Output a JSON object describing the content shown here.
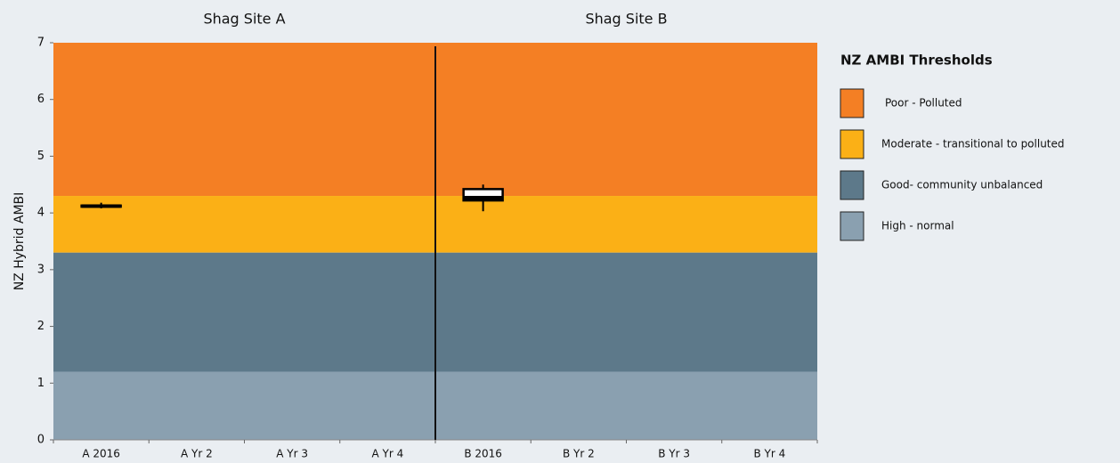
{
  "chart_data": {
    "type": "box",
    "groups": [
      "Shag Site A",
      "Shag Site B"
    ],
    "ylabel": "NZ Hybrid AMBI",
    "categories": [
      "A  2016",
      "A Yr 2",
      "A Yr 3",
      "A Yr 4",
      "B 2016",
      "B Yr 2",
      "B Yr 3",
      "B Yr 4"
    ],
    "boxes": [
      {
        "min": 4.08,
        "q1": 4.11,
        "median": 4.12,
        "q3": 4.13,
        "max": 4.18
      },
      null,
      null,
      null,
      {
        "min": 4.03,
        "q1": 4.22,
        "median": 4.27,
        "q3": 4.42,
        "max": 4.5
      },
      null,
      null,
      null
    ],
    "ylim": [
      0,
      7
    ],
    "yticks": [
      0,
      1,
      2,
      3,
      4,
      5,
      6,
      7
    ],
    "legend_title": "NZ AMBI Thresholds",
    "thresholds": [
      {
        "label": "Poor - Polluted",
        "color": "#f47f24",
        "from": 4.3,
        "to": 7
      },
      {
        "label": "Moderate - transitional to polluted",
        "color": "#fbb016",
        "from": 3.3,
        "to": 4.3
      },
      {
        "label": "Good- community unbalanced",
        "color": "#5d798a",
        "from": 1.2,
        "to": 3.3
      },
      {
        "label": "High - normal",
        "color": "#8aa0b0",
        "from": 0,
        "to": 1.2
      }
    ]
  }
}
